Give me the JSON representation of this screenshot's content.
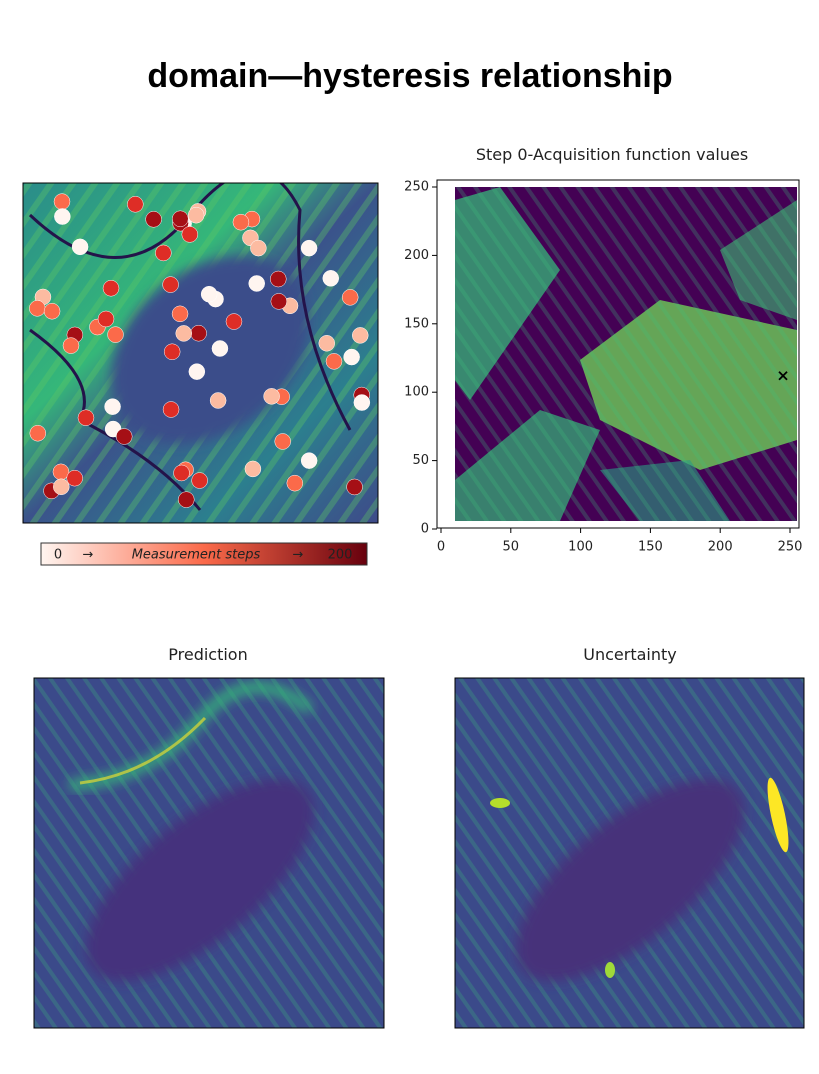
{
  "title": "domain—hysteresis relationship",
  "panels": [
    {
      "colorbar": {
        "start": "0",
        "label": "Measurement steps",
        "end": "200"
      }
    },
    {
      "title": "Step 0-Acquisition function values",
      "xlim": [
        0,
        255
      ],
      "ylim": [
        0,
        255
      ],
      "xticks": [
        0,
        50,
        100,
        150,
        200,
        250
      ],
      "yticks": [
        0,
        50,
        100,
        150,
        200,
        250
      ],
      "marker": {
        "x": 245,
        "y": 112
      }
    },
    {
      "title": "Prediction"
    },
    {
      "title": "Uncertainty"
    }
  ]
}
